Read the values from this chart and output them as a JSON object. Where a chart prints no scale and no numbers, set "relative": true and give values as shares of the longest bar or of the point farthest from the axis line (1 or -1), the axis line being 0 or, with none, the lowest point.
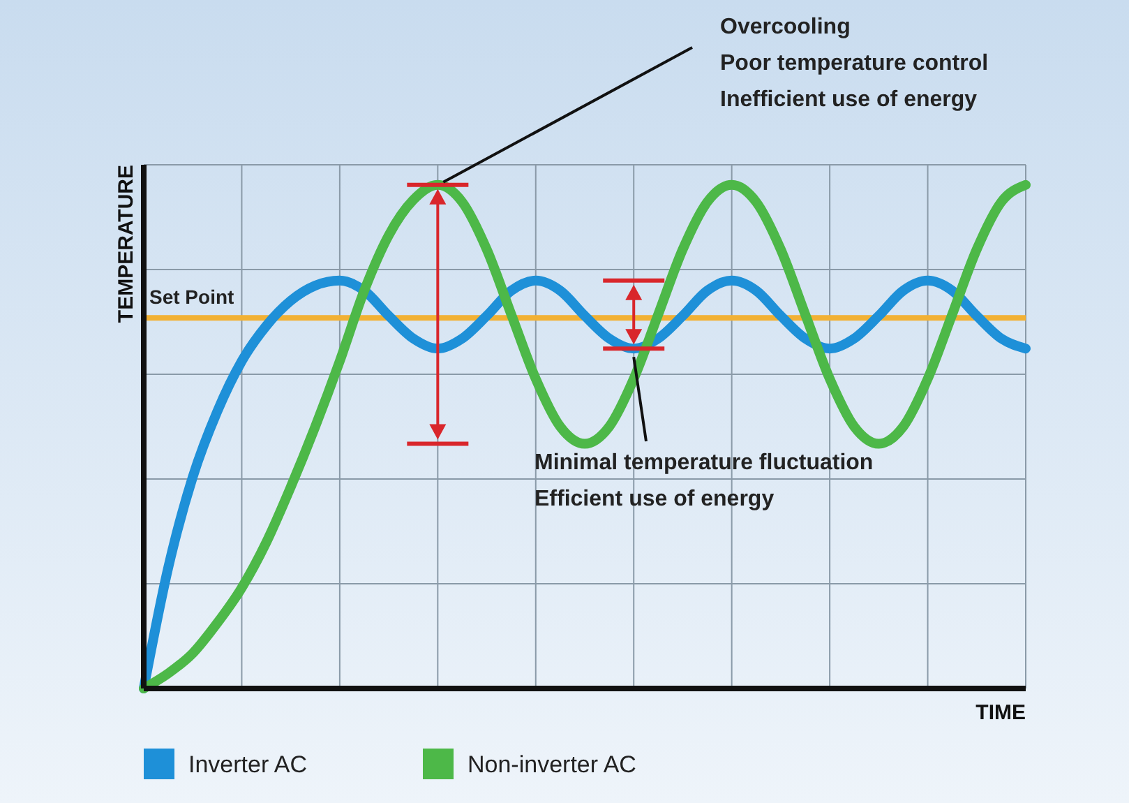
{
  "chart_data": {
    "type": "line",
    "relative": true,
    "xlabel": "TIME",
    "ylabel": "TEMPERATURE",
    "grid": true,
    "legend": "bottom",
    "line_style": "solid",
    "marker": "none",
    "categories": [
      null,
      null,
      null,
      null,
      null,
      null,
      null,
      null,
      null,
      null,
      null,
      null,
      null,
      null,
      null,
      null,
      null,
      null,
      null,
      null,
      null,
      null,
      null,
      null,
      null,
      null,
      null,
      null,
      null,
      null,
      null,
      null,
      null,
      null,
      null,
      null,
      null
    ],
    "series": [
      {
        "name": "Inverter AC",
        "color": "#1e90d8",
        "values": [
          0,
          0.24,
          0.42,
          0.55,
          0.65,
          0.72,
          0.77,
          0.8,
          0.81,
          0.79,
          0.74,
          0.695,
          0.675,
          0.695,
          0.74,
          0.79,
          0.81,
          0.79,
          0.74,
          0.695,
          0.675,
          0.695,
          0.74,
          0.79,
          0.81,
          0.79,
          0.74,
          0.695,
          0.675,
          0.695,
          0.74,
          0.79,
          0.81,
          0.79,
          0.74,
          0.695,
          0.675
        ]
      },
      {
        "name": "Non-inverter AC",
        "color": "#4db848",
        "values": [
          0,
          0.03,
          0.07,
          0.13,
          0.2,
          0.29,
          0.4,
          0.52,
          0.65,
          0.79,
          0.9,
          0.97,
          1,
          0.966,
          0.872,
          0.743,
          0.615,
          0.52,
          0.486,
          0.52,
          0.615,
          0.743,
          0.872,
          0.966,
          1,
          0.966,
          0.872,
          0.743,
          0.615,
          0.52,
          0.486,
          0.52,
          0.615,
          0.743,
          0.872,
          0.966,
          1
        ]
      }
    ],
    "ref_lines": [
      {
        "axis": "y",
        "value": 0.736,
        "label": "Set Point",
        "color": "#f2b134"
      }
    ],
    "annotations": [
      "Overcooling\nPoor temperature control\nInefficient use of energy",
      "Minimal temperature fluctuation\nEfficient use of energy"
    ]
  }
}
